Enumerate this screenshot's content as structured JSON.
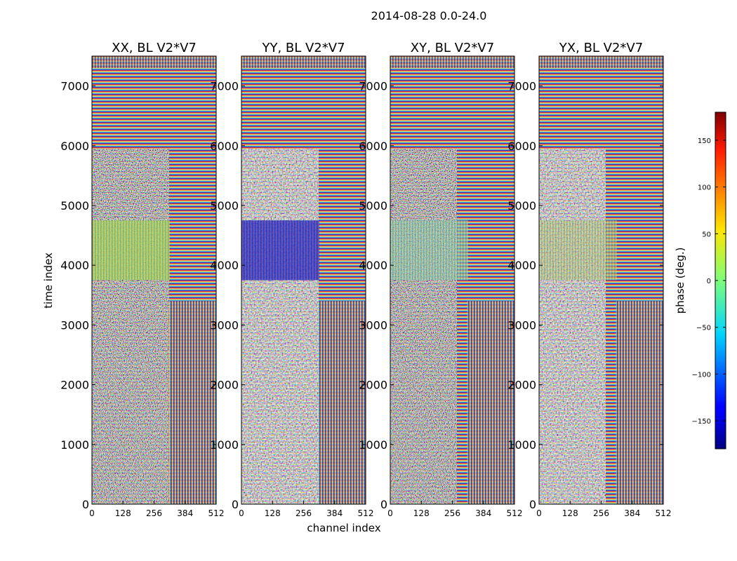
{
  "figure": {
    "suptitle": "2014-08-28 0.0-24.0",
    "xlabel": "channel index",
    "ylabel": "time index"
  },
  "chart_data": {
    "type": "heatmap",
    "title": "2014-08-28 0.0-24.0",
    "xlabel": "channel index",
    "ylabel": "time index",
    "xlim": [
      0,
      512
    ],
    "ylim": [
      0,
      7500
    ],
    "x_ticks": [
      0,
      128,
      256,
      384,
      512
    ],
    "y_ticks": [
      0,
      1000,
      2000,
      3000,
      4000,
      5000,
      6000,
      7000
    ],
    "panels": [
      {
        "title": "XX, BL V2*V7",
        "block_value": 30,
        "block_color": "#a8e35a"
      },
      {
        "title": "YY, BL V2*V7",
        "block_value": -150,
        "block_color": "#1a1ad0"
      },
      {
        "title": "XY, BL V2*V7",
        "block_value": -20,
        "block_color": "#8ce6b4"
      },
      {
        "title": "YX, BL V2*V7",
        "block_value": 20,
        "block_color": "#bde67a"
      }
    ],
    "colorbar": {
      "label": "phase (deg.)",
      "range": [
        -180,
        180
      ],
      "ticks": [
        150,
        100,
        50,
        0,
        -50,
        -100,
        -150
      ],
      "tick_labels": [
        "150",
        "100",
        "50",
        "0",
        "−50",
        "−100",
        "−150"
      ],
      "colormap": "jet"
    }
  }
}
